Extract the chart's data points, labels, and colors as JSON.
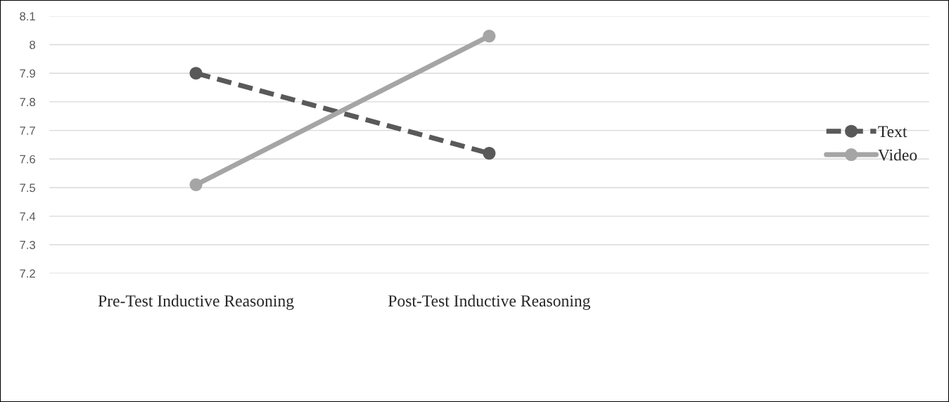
{
  "chart_data": {
    "type": "line",
    "categories": [
      "Pre-Test Inductive Reasoning",
      "Post-Test Inductive Reasoning",
      null
    ],
    "series": [
      {
        "name": "Text",
        "color": "#595959",
        "values": [
          7.9,
          7.62,
          null
        ],
        "line_style": "dashed"
      },
      {
        "name": "Video",
        "color": "#a5a5a5",
        "values": [
          7.51,
          8.03,
          null
        ],
        "line_style": "solid"
      }
    ],
    "ylim": [
      7.2,
      8.1
    ],
    "yticks": [
      7.2,
      7.3,
      7.4,
      7.5,
      7.6,
      7.7,
      7.8,
      7.9,
      8,
      8.1
    ],
    "grid": "y",
    "legend": "right",
    "marker": "circle"
  }
}
